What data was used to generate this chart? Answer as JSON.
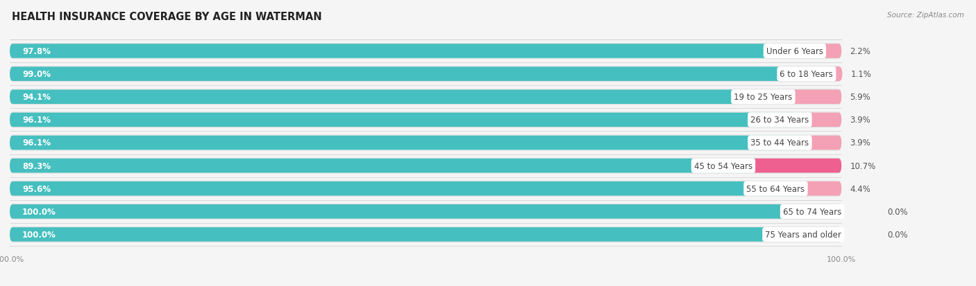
{
  "title": "HEALTH INSURANCE COVERAGE BY AGE IN WATERMAN",
  "source": "Source: ZipAtlas.com",
  "categories": [
    "Under 6 Years",
    "6 to 18 Years",
    "19 to 25 Years",
    "26 to 34 Years",
    "35 to 44 Years",
    "45 to 54 Years",
    "55 to 64 Years",
    "65 to 74 Years",
    "75 Years and older"
  ],
  "with_coverage": [
    97.8,
    99.0,
    94.1,
    96.1,
    96.1,
    89.3,
    95.6,
    100.0,
    100.0
  ],
  "without_coverage": [
    2.2,
    1.1,
    5.9,
    3.9,
    3.9,
    10.7,
    4.4,
    0.0,
    0.0
  ],
  "color_with": "#45BFBF",
  "color_without_small": "#F4A0B5",
  "color_without_large": "#EE6090",
  "bg_color": "#f5f5f5",
  "row_bg": "#e8e8e8",
  "title_fontsize": 10.5,
  "label_fontsize": 8.5,
  "cat_fontsize": 8.5,
  "pct_fontsize": 8.5,
  "tick_fontsize": 8,
  "bar_height": 0.62,
  "xlim_max": 115,
  "total_pct": 100
}
